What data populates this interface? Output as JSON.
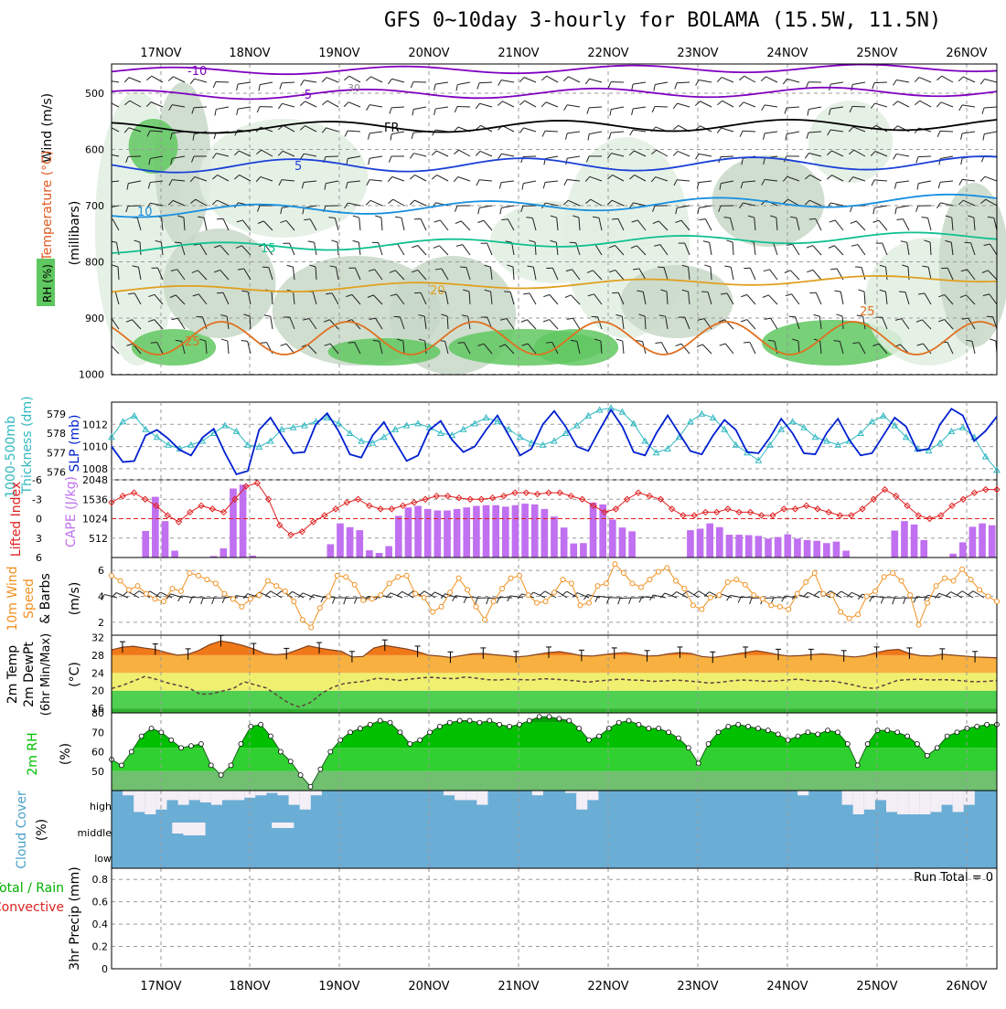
{
  "title": "GFS 0~10day 3-hourly for BOLAMA (15.5W, 11.5N)",
  "dates": [
    "17NOV",
    "18NOV",
    "19NOV",
    "20NOV",
    "21NOV",
    "22NOV",
    "23NOV",
    "24NOV",
    "25NOV",
    "26NOV"
  ],
  "colors": {
    "temp_contours": [
      "#8000c0",
      "#8000c0",
      "#000000",
      "#1a40d8",
      "#1890e0",
      "#10c090",
      "#e0a020",
      "#e07020"
    ],
    "rh_fill": [
      "#e8f2e8",
      "#c8d8c8",
      "#60c860",
      "#00c800"
    ],
    "slp": "#0020d0",
    "thickness": "#30b8c0",
    "lifted_index": "#e02020",
    "cape": "#c070f0",
    "wind10m": "#f09020",
    "rh2m": "#00c000",
    "cloud_bg": "#6aaed6",
    "cloud_fill": "#f4eef6"
  },
  "panels": {
    "upper_air": {
      "labels": [
        "Wind (m/s)",
        "Temperature (°C)",
        "RH (%)",
        "(millibars)"
      ],
      "levels": [
        500,
        600,
        700,
        800,
        900,
        1000
      ],
      "contour_labels": [
        "-10",
        "-5",
        "FR",
        "5",
        "10",
        "15",
        "20",
        "25",
        "30"
      ]
    },
    "slp_thickness": {
      "labels": [
        "1000-500mb",
        "Thickness (dm)",
        "SLP (mb)"
      ],
      "thickness_ticks": [
        579,
        578,
        577,
        576
      ],
      "slp_ticks": [
        1012,
        1010,
        1008
      ]
    },
    "cape_li": {
      "labels": [
        "Lifted Index",
        "CAPE (J/kg)"
      ],
      "li_ticks": [
        -6,
        -3,
        0,
        3,
        6
      ],
      "cape_ticks": [
        2048,
        1536,
        1024,
        512
      ]
    },
    "wind10m": {
      "labels": [
        "10m Wind",
        "Speed",
        "& Barbs",
        "(m/s)"
      ],
      "ticks": [
        6,
        4,
        2
      ]
    },
    "temp2m": {
      "labels": [
        "2m Temp",
        "2m DewPt",
        "(6hr Min/Max)",
        "(°C)"
      ],
      "ticks": [
        32,
        28,
        24,
        20,
        16
      ]
    },
    "rh2m": {
      "labels": [
        "2m RH",
        "(%)"
      ],
      "ticks": [
        80,
        70,
        60,
        50
      ]
    },
    "cloud": {
      "labels": [
        "Cloud Cover",
        "(%)"
      ],
      "ticks": [
        "high",
        "middle",
        "low"
      ]
    },
    "precip": {
      "labels": [
        "Total / Rain",
        "Convective",
        "3hr Precip (mm)"
      ],
      "ticks": [
        "0.8",
        "0.6",
        "0.4",
        "0.2",
        "0"
      ],
      "run_total": "Run Total = 0"
    }
  },
  "chart_data": [
    {
      "type": "line",
      "name": "slp",
      "ylabel": "SLP (mb)",
      "ylim": [
        1007,
        1014
      ],
      "values": [
        1010,
        1008.6,
        1008.7,
        1011,
        1011.5,
        1010.7,
        1009.7,
        1009.2,
        1010.8,
        1011.6,
        1009.4,
        1007.5,
        1007.8,
        1011.5,
        1012.6,
        1011,
        1009.4,
        1009.5,
        1012,
        1013,
        1011.4,
        1009.3,
        1009,
        1011,
        1012.2,
        1010.4,
        1008.7,
        1009.2,
        1011.5,
        1012.3,
        1010.6,
        1009.5,
        1010,
        1011.5,
        1012.8,
        1011,
        1009.2,
        1009.8,
        1012,
        1013.2,
        1011.8,
        1010,
        1009.6,
        1011.5,
        1013.3,
        1011.8,
        1009.5,
        1009.2,
        1011.2,
        1012.8,
        1011.2,
        1009.6,
        1009.3,
        1011,
        1012.4,
        1011.5,
        1009.5,
        1009.4,
        1010.8,
        1012.5,
        1011.2,
        1009.4,
        1009.3,
        1011.2,
        1012.5,
        1010.6,
        1009.2,
        1009.4,
        1011,
        1012.6,
        1011.8,
        1009.6,
        1009.8,
        1012,
        1013.4,
        1012.8,
        1010.5,
        1011.4,
        1012.7
      ]
    },
    {
      "type": "line",
      "name": "thickness",
      "ylabel": "Thickness (dm)",
      "ylim": [
        575.6,
        579.6
      ],
      "values": [
        577.8,
        578.6,
        578.9,
        578.2,
        577.8,
        577.4,
        577.2,
        577.4,
        577.6,
        578,
        578.4,
        578.1,
        577.4,
        577.3,
        577.6,
        578.2,
        578.3,
        578.4,
        578.6,
        578.8,
        578.5,
        578,
        577.6,
        577.5,
        577.8,
        578.2,
        578.4,
        578.5,
        578.3,
        578,
        577.9,
        578.2,
        578.5,
        578.8,
        578.6,
        578.2,
        577.8,
        577.5,
        577.4,
        577.6,
        578,
        578.4,
        578.9,
        579.2,
        579.3,
        579.1,
        578.5,
        577.6,
        577,
        577.2,
        577.8,
        578.6,
        579,
        578.8,
        578.2,
        577.4,
        577,
        576.6,
        577.4,
        578.2,
        578.6,
        578.3,
        577.8,
        577.6,
        577.4,
        577.6,
        578,
        578.6,
        578.9,
        578.4,
        577.8,
        577.2,
        577.1,
        577.5,
        578.1,
        578.3,
        577.8,
        576.8,
        576.1
      ]
    },
    {
      "type": "line",
      "name": "lifted_index",
      "ylabel": "Lifted Index",
      "ylim": [
        6,
        -6
      ],
      "values": [
        -2.5,
        -3.5,
        -4,
        -3,
        -2,
        -0.5,
        0.5,
        -1,
        -2,
        -1.5,
        -1,
        -3,
        -5,
        -5.5,
        -3,
        1,
        2.5,
        2,
        0.5,
        -0.5,
        -1.5,
        -2.5,
        -3,
        -2,
        -1.5,
        -1.5,
        -2,
        -2.5,
        -3,
        -3.5,
        -3.5,
        -3.2,
        -3,
        -3,
        -3.2,
        -3.5,
        -4,
        -4,
        -3.8,
        -4,
        -4,
        -3.5,
        -3,
        -2,
        -1,
        -1.5,
        -3,
        -4,
        -3.5,
        -3,
        -1.5,
        -0.5,
        -0.5,
        -1,
        -1,
        -1.5,
        -1,
        -1,
        -0.5,
        -0.5,
        -1.5,
        -1.5,
        -2,
        -1.5,
        -1,
        -0.5,
        -0.5,
        -1.5,
        -3,
        -4.5,
        -3.5,
        -2,
        -0.5,
        0,
        -0.5,
        -2,
        -3,
        -4,
        -4.5,
        -4.5
      ]
    },
    {
      "type": "bar",
      "name": "cape",
      "ylabel": "CAPE (J/kg)",
      "ylim": [
        0,
        2048
      ],
      "values": [
        0,
        0,
        0,
        700,
        1600,
        960,
        180,
        10,
        0,
        0,
        40,
        240,
        1820,
        1920,
        50,
        0,
        0,
        0,
        0,
        0,
        0,
        0,
        350,
        900,
        800,
        720,
        190,
        120,
        300,
        1100,
        1320,
        1360,
        1280,
        1240,
        1240,
        1280,
        1320,
        1360,
        1380,
        1380,
        1340,
        1380,
        1420,
        1400,
        1280,
        1080,
        790,
        370,
        380,
        1450,
        1400,
        1000,
        790,
        690,
        0,
        0,
        0,
        0,
        0,
        720,
        760,
        900,
        800,
        600,
        600,
        590,
        570,
        500,
        540,
        610,
        500,
        460,
        440,
        380,
        420,
        180,
        0,
        0,
        0,
        0,
        710,
        960,
        870,
        460,
        0,
        0,
        100,
        400,
        810,
        900,
        850
      ]
    },
    {
      "type": "line",
      "name": "wind10m_speed",
      "ylabel": "Speed (m/s)",
      "ylim": [
        1,
        7
      ],
      "values": [
        5.6,
        5.2,
        4.5,
        4.8,
        4.2,
        3.8,
        3.6,
        4.6,
        4.4,
        5.8,
        5.6,
        5.3,
        5,
        4.2,
        3.8,
        3.2,
        3.8,
        4.1,
        5.2,
        4.8,
        4.4,
        3.6,
        2.2,
        1.6,
        3.1,
        4,
        5.6,
        5.5,
        4.9,
        3.7,
        3.8,
        4.1,
        5,
        5.5,
        5.6,
        4.2,
        3.9,
        2.8,
        3.2,
        4.3,
        5.4,
        4.5,
        3.2,
        2.2,
        3.6,
        4.6,
        5.4,
        5.6,
        4.1,
        3.5,
        3.6,
        4.3,
        5.3,
        5,
        3.3,
        3.5,
        4.8,
        5,
        6.5,
        5.8,
        5,
        4.7,
        5.3,
        5.9,
        6.2,
        5.2,
        4.6,
        3.3,
        3,
        3.9,
        4.1,
        5.1,
        5.3,
        4.9,
        4.1,
        3.8,
        3.3,
        3.2,
        3,
        4.2,
        5.1,
        5.8,
        4.2,
        4.1,
        2.8,
        2.3,
        2.6,
        4,
        4.4,
        5.5,
        5.8,
        5.2,
        4.1,
        1.8,
        3.5,
        4.8,
        5.4,
        5.2,
        6.1,
        5.3,
        4.5,
        4,
        3.6
      ]
    },
    {
      "type": "area",
      "name": "temp2m",
      "ylabel": "2m Temp (°C)",
      "ylim": [
        15,
        32.5
      ],
      "values": [
        29.2,
        29.8,
        30,
        29.6,
        29.3,
        28.6,
        28,
        28.2,
        29.1,
        30.4,
        31.2,
        30.8,
        30.2,
        29.4,
        28.4,
        28.1,
        28.3,
        29.2,
        30.1,
        29.6,
        29.2,
        28.9,
        27.6,
        27.7,
        29.6,
        30.2,
        29.8,
        29.4,
        28.8,
        28,
        27.8,
        27.5,
        27.9,
        28.3,
        28.4,
        28.1,
        27.9,
        27.6,
        27.8,
        28.2,
        28.6,
        28.8,
        28.4,
        27.9,
        27.8,
        28.1,
        28.4,
        28.6,
        28.2,
        27.8,
        27.9,
        28.3,
        28.6,
        28.4,
        27.7,
        27.5,
        27.8,
        28.2,
        28.6,
        29,
        28.6,
        28.1,
        27.8,
        27.9,
        28.1,
        28.3,
        28.1,
        27.8,
        27.6,
        27.9,
        28.6,
        29.1,
        29.3,
        28.4,
        27.9,
        27.8,
        28.2,
        28,
        27.8,
        27.6,
        27.5,
        27.4
      ]
    },
    {
      "type": "line",
      "name": "dewpoint2m",
      "ylabel": "2m DewPt (°C)",
      "ylim": [
        15,
        32.5
      ],
      "values": [
        20.5,
        21.2,
        22.2,
        23.2,
        22.6,
        21.8,
        21.2,
        20.6,
        19.2,
        19.3,
        19.9,
        20.5,
        22,
        21.3,
        20.6,
        18.9,
        17.2,
        16.3,
        17.4,
        19.4,
        20.8,
        21.6,
        21.9,
        22.2,
        22.8,
        22.6,
        22.3,
        22.6,
        22.9,
        23,
        22.8,
        22.7,
        23.1,
        22.8,
        22.5,
        22.4,
        22.6,
        22.5,
        22.4,
        22.7,
        22.6,
        22.4,
        22.2,
        21.9,
        22.2,
        22.4,
        22.6,
        22.4,
        22.3,
        22.1,
        22.2,
        22.4,
        22.2,
        22,
        21.7,
        21.9,
        22.2,
        22.4,
        22.3,
        22.1,
        22.2,
        22.4,
        22.6,
        22.3,
        22.1,
        22.2,
        21.8,
        21.3,
        20.7,
        20.5,
        21.4,
        22.3,
        22.5,
        22.6,
        22.4,
        22.5,
        22.4,
        22.2,
        22,
        22.1,
        22.3
      ]
    },
    {
      "type": "area",
      "name": "rh2m",
      "ylabel": "2m RH (%)",
      "ylim": [
        40,
        80
      ],
      "values": [
        56,
        53,
        60,
        68,
        72,
        70,
        66,
        62,
        63,
        64,
        53,
        48,
        53,
        64,
        73,
        74,
        68,
        60,
        55,
        48,
        42,
        51,
        60,
        66,
        70,
        72,
        74,
        76,
        75,
        70,
        64,
        66,
        70,
        73,
        75,
        76,
        76,
        75,
        76,
        74,
        73,
        74,
        76,
        78,
        78,
        77,
        76,
        72,
        66,
        68,
        72,
        75,
        76,
        74,
        72,
        72,
        70,
        67,
        62,
        54,
        64,
        70,
        73,
        74,
        73,
        72,
        71,
        69,
        66,
        68,
        70,
        69,
        71,
        70,
        64,
        53,
        64,
        71,
        71,
        70,
        68,
        64,
        58,
        62,
        68,
        70,
        72,
        73,
        74,
        74
      ]
    },
    {
      "type": "bar",
      "name": "cloud_high",
      "ylabel": "high",
      "ylim": [
        0,
        100
      ],
      "values": [
        0,
        20,
        90,
        100,
        80,
        40,
        60,
        40,
        50,
        60,
        40,
        40,
        30,
        20,
        10,
        20,
        60,
        80,
        20,
        0,
        0,
        0,
        0,
        0,
        0,
        0,
        0,
        0,
        0,
        0,
        20,
        40,
        40,
        60,
        0,
        0,
        0,
        0,
        20,
        0,
        0,
        10,
        80,
        40,
        0,
        0,
        0,
        0,
        0,
        0,
        0,
        0,
        0,
        0,
        0,
        0,
        0,
        0,
        0,
        0,
        0,
        0,
        20,
        0,
        0,
        0,
        60,
        100,
        80,
        40,
        90,
        100,
        100,
        100,
        90,
        60,
        90,
        60,
        0,
        0
      ]
    }
  ]
}
